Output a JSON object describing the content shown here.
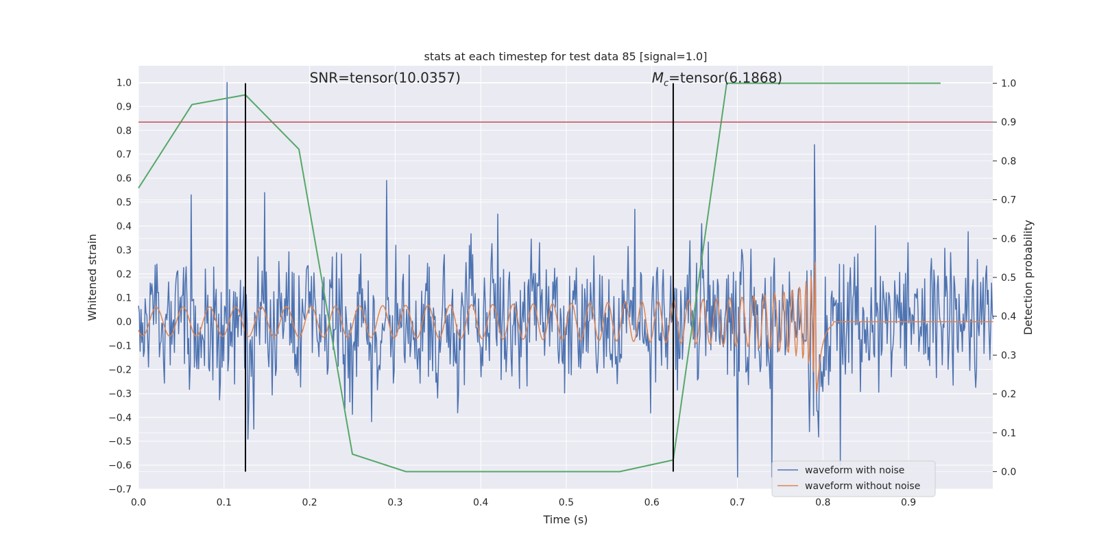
{
  "chart_data": {
    "type": "line",
    "title": "stats at each timestep for test data 85 [signal=1.0]",
    "xlabel": "Time (s)",
    "ylabel": "Whitened strain",
    "y2label": "Detection probability",
    "xlim": [
      0.0,
      0.9985
    ],
    "ylim": [
      -0.7,
      1.07
    ],
    "y2lim": [
      -0.045,
      1.045
    ],
    "xticks": [
      0.0,
      0.1,
      0.2,
      0.3,
      0.4,
      0.5,
      0.6,
      0.7,
      0.8,
      0.9
    ],
    "yticks": [
      -0.7,
      -0.6,
      -0.5,
      -0.4,
      -0.3,
      -0.2,
      -0.1,
      0.0,
      0.1,
      0.2,
      0.3,
      0.4,
      0.5,
      0.6,
      0.7,
      0.8,
      0.9,
      1.0
    ],
    "y2ticks": [
      0.0,
      0.1,
      0.2,
      0.3,
      0.4,
      0.5,
      0.6,
      0.7,
      0.8,
      0.9,
      1.0
    ],
    "xtick_labels": [
      "0.0",
      "0.1",
      "0.2",
      "0.3",
      "0.4",
      "0.5",
      "0.6",
      "0.7",
      "0.8",
      "0.9"
    ],
    "ytick_labels": [
      "−0.7",
      "−0.6",
      "−0.5",
      "−0.4",
      "−0.3",
      "−0.2",
      "−0.1",
      "0.0",
      "0.1",
      "0.2",
      "0.3",
      "0.4",
      "0.5",
      "0.6",
      "0.7",
      "0.8",
      "0.9",
      "1.0"
    ],
    "y2tick_labels": [
      "0.0",
      "0.1",
      "0.2",
      "0.3",
      "0.4",
      "0.5",
      "0.6",
      "0.7",
      "0.8",
      "0.9",
      "1.0"
    ],
    "annotations": {
      "snr": "SNR=tensor(10.0357)",
      "mc_symbol": "M",
      "mc_sub": "c",
      "mc_value": "=tensor(6.1868)"
    },
    "annotation_positions": {
      "snr": {
        "x": 0.2,
        "y2": 1.0
      },
      "mc": {
        "x": 0.6,
        "y2": 1.0
      }
    },
    "vertical_markers": [
      0.125,
      0.625
    ],
    "threshold": {
      "y2": 0.9,
      "color": "#c44e52"
    },
    "legend": {
      "placement": "lower-right",
      "entries": [
        "waveform with noise",
        "waveform without noise"
      ]
    },
    "series": [
      {
        "name": "waveform with noise",
        "color": "#4c72b0",
        "axis": "left",
        "description": "noisy whitened strain, peak 1.0 at t≈0.104, minimum ≈ -0.65 at t≈0.74",
        "peaks": [
          [
            0.104,
            1.0
          ],
          [
            0.062,
            0.53
          ],
          [
            0.147,
            0.54
          ],
          [
            0.29,
            0.59
          ],
          [
            0.79,
            0.74
          ],
          [
            0.7,
            -0.65
          ],
          [
            0.82,
            -0.6
          ],
          [
            0.74,
            -0.65
          ],
          [
            0.42,
            0.45
          ],
          [
            0.58,
            0.47
          ]
        ]
      },
      {
        "name": "waveform without noise",
        "color": "#dd8452",
        "axis": "left",
        "description": "inspiral chirp, amplitude ≈0.06 growing to ≈0.3, merger near t≈0.79, flat after ≈0.81"
      },
      {
        "name": "Detection probability",
        "color": "#55a868",
        "axis": "right",
        "x": [
          0.0,
          0.0625,
          0.125,
          0.1875,
          0.25,
          0.3125,
          0.375,
          0.4375,
          0.5,
          0.5625,
          0.625,
          0.6875,
          0.75,
          0.8125,
          0.875,
          0.9375
        ],
        "values": [
          0.73,
          0.945,
          0.97,
          0.83,
          0.045,
          0.0,
          0.0,
          0.0,
          0.0,
          0.0,
          0.03,
          1.0,
          1.0,
          1.0,
          1.0,
          1.0
        ]
      }
    ]
  },
  "colors": {
    "background": "#eaeaf2",
    "grid": "#ffffff",
    "noise": "#4c72b0",
    "clean": "#dd8452",
    "prob": "#55a868",
    "threshold": "#c44e52",
    "marker": "#000000"
  }
}
